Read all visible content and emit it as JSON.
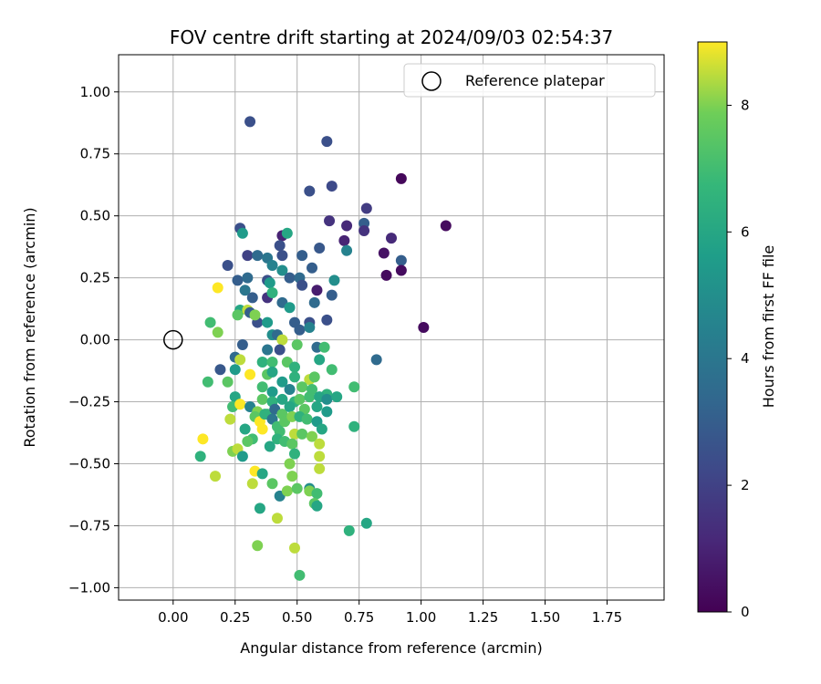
{
  "chart_data": {
    "type": "scatter",
    "title": "FOV centre drift starting at 2024/09/03 02:54:37",
    "xlabel": "Angular distance from reference (arcmin)",
    "ylabel": "Rotation from reference (arcmin)",
    "colorbar_label": "Hours from first FF file",
    "colormap": "viridis",
    "xlim": [
      -0.22,
      1.98
    ],
    "ylim": [
      -1.05,
      1.15
    ],
    "clim": [
      0,
      9
    ],
    "xticks": [
      "0.00",
      "0.25",
      "0.50",
      "0.75",
      "1.00",
      "1.25",
      "1.50",
      "1.75"
    ],
    "yticks": [
      "1.00",
      "0.75",
      "0.50",
      "0.25",
      "0.00",
      "−0.25",
      "−0.50",
      "−0.75",
      "−1.00"
    ],
    "colorbar_ticks": [
      "0",
      "2",
      "4",
      "6",
      "8"
    ],
    "grid": true,
    "legend": {
      "placement": "top-right",
      "entries": [
        "Reference platepar"
      ]
    },
    "reference_point": {
      "x": 0.0,
      "y": 0.0
    },
    "points": [
      {
        "x": 0.31,
        "y": 0.88,
        "h": 2.5
      },
      {
        "x": 0.62,
        "y": 0.8,
        "h": 2.5
      },
      {
        "x": 0.92,
        "y": 0.65,
        "h": 0.2
      },
      {
        "x": 0.64,
        "y": 0.62,
        "h": 2.3
      },
      {
        "x": 0.55,
        "y": 0.6,
        "h": 2.5
      },
      {
        "x": 0.78,
        "y": 0.53,
        "h": 1.8
      },
      {
        "x": 1.1,
        "y": 0.46,
        "h": 0.3
      },
      {
        "x": 0.63,
        "y": 0.48,
        "h": 1.5
      },
      {
        "x": 0.7,
        "y": 0.46,
        "h": 1.2
      },
      {
        "x": 0.77,
        "y": 0.47,
        "h": 3.0
      },
      {
        "x": 0.77,
        "y": 0.44,
        "h": 1.5
      },
      {
        "x": 0.88,
        "y": 0.41,
        "h": 1.2
      },
      {
        "x": 0.69,
        "y": 0.4,
        "h": 1.0
      },
      {
        "x": 0.27,
        "y": 0.45,
        "h": 2.5
      },
      {
        "x": 0.28,
        "y": 0.43,
        "h": 5.5
      },
      {
        "x": 0.44,
        "y": 0.42,
        "h": 1.0
      },
      {
        "x": 0.46,
        "y": 0.43,
        "h": 6.0
      },
      {
        "x": 0.43,
        "y": 0.38,
        "h": 2.5
      },
      {
        "x": 0.59,
        "y": 0.37,
        "h": 2.8
      },
      {
        "x": 0.7,
        "y": 0.36,
        "h": 4.5
      },
      {
        "x": 0.85,
        "y": 0.35,
        "h": 0.5
      },
      {
        "x": 0.92,
        "y": 0.32,
        "h": 3.0
      },
      {
        "x": 0.3,
        "y": 0.34,
        "h": 2.0
      },
      {
        "x": 0.34,
        "y": 0.34,
        "h": 3.5
      },
      {
        "x": 0.38,
        "y": 0.33,
        "h": 4.0
      },
      {
        "x": 0.44,
        "y": 0.34,
        "h": 2.5
      },
      {
        "x": 0.52,
        "y": 0.34,
        "h": 3.0
      },
      {
        "x": 0.22,
        "y": 0.3,
        "h": 2.5
      },
      {
        "x": 0.4,
        "y": 0.3,
        "h": 4.5
      },
      {
        "x": 0.56,
        "y": 0.29,
        "h": 3.0
      },
      {
        "x": 0.44,
        "y": 0.28,
        "h": 5.0
      },
      {
        "x": 0.92,
        "y": 0.28,
        "h": 0.3
      },
      {
        "x": 0.86,
        "y": 0.26,
        "h": 0.3
      },
      {
        "x": 0.26,
        "y": 0.24,
        "h": 3.0
      },
      {
        "x": 0.3,
        "y": 0.25,
        "h": 3.5
      },
      {
        "x": 0.38,
        "y": 0.24,
        "h": 2.5
      },
      {
        "x": 0.47,
        "y": 0.25,
        "h": 3.0
      },
      {
        "x": 0.51,
        "y": 0.25,
        "h": 3.5
      },
      {
        "x": 0.52,
        "y": 0.22,
        "h": 2.5
      },
      {
        "x": 0.65,
        "y": 0.24,
        "h": 5.0
      },
      {
        "x": 0.29,
        "y": 0.2,
        "h": 4.0
      },
      {
        "x": 0.39,
        "y": 0.23,
        "h": 5.5
      },
      {
        "x": 0.58,
        "y": 0.2,
        "h": 0.8
      },
      {
        "x": 0.18,
        "y": 0.21,
        "h": 9.0
      },
      {
        "x": 0.32,
        "y": 0.17,
        "h": 3.0
      },
      {
        "x": 0.38,
        "y": 0.17,
        "h": 1.5
      },
      {
        "x": 0.4,
        "y": 0.19,
        "h": 6.5
      },
      {
        "x": 0.44,
        "y": 0.15,
        "h": 3.5
      },
      {
        "x": 0.47,
        "y": 0.13,
        "h": 5.5
      },
      {
        "x": 0.57,
        "y": 0.15,
        "h": 3.5
      },
      {
        "x": 0.64,
        "y": 0.18,
        "h": 3.0
      },
      {
        "x": 0.27,
        "y": 0.12,
        "h": 6.0
      },
      {
        "x": 0.3,
        "y": 0.12,
        "h": 8.5
      },
      {
        "x": 0.31,
        "y": 0.11,
        "h": 3.0
      },
      {
        "x": 0.34,
        "y": 0.07,
        "h": 2.5
      },
      {
        "x": 0.26,
        "y": 0.1,
        "h": 7.5
      },
      {
        "x": 0.33,
        "y": 0.1,
        "h": 8.0
      },
      {
        "x": 0.38,
        "y": 0.07,
        "h": 5.5
      },
      {
        "x": 0.49,
        "y": 0.07,
        "h": 3.0
      },
      {
        "x": 0.55,
        "y": 0.07,
        "h": 2.5
      },
      {
        "x": 0.62,
        "y": 0.08,
        "h": 2.5
      },
      {
        "x": 0.15,
        "y": 0.07,
        "h": 7.0
      },
      {
        "x": 0.18,
        "y": 0.03,
        "h": 8.0
      },
      {
        "x": 0.4,
        "y": 0.02,
        "h": 5.0
      },
      {
        "x": 0.42,
        "y": 0.02,
        "h": 3.5
      },
      {
        "x": 0.44,
        "y": 0.0,
        "h": 8.5
      },
      {
        "x": 0.51,
        "y": 0.04,
        "h": 3.0
      },
      {
        "x": 0.55,
        "y": 0.05,
        "h": 4.5
      },
      {
        "x": 0.28,
        "y": -0.02,
        "h": 3.0
      },
      {
        "x": 0.38,
        "y": -0.04,
        "h": 4.0
      },
      {
        "x": 0.43,
        "y": -0.04,
        "h": 2.5
      },
      {
        "x": 0.5,
        "y": -0.02,
        "h": 7.5
      },
      {
        "x": 0.58,
        "y": -0.03,
        "h": 3.5
      },
      {
        "x": 0.61,
        "y": -0.03,
        "h": 7.0
      },
      {
        "x": 0.82,
        "y": -0.08,
        "h": 3.5
      },
      {
        "x": 0.25,
        "y": -0.07,
        "h": 3.5
      },
      {
        "x": 0.27,
        "y": -0.08,
        "h": 8.5
      },
      {
        "x": 0.36,
        "y": -0.09,
        "h": 6.5
      },
      {
        "x": 0.4,
        "y": -0.09,
        "h": 7.0
      },
      {
        "x": 0.46,
        "y": -0.09,
        "h": 7.5
      },
      {
        "x": 0.49,
        "y": -0.11,
        "h": 6.5
      },
      {
        "x": 0.59,
        "y": -0.08,
        "h": 6.0
      },
      {
        "x": 0.64,
        "y": -0.12,
        "h": 7.0
      },
      {
        "x": 0.19,
        "y": -0.12,
        "h": 2.8
      },
      {
        "x": 0.25,
        "y": -0.12,
        "h": 5.5
      },
      {
        "x": 0.31,
        "y": -0.14,
        "h": 9.0
      },
      {
        "x": 0.38,
        "y": -0.14,
        "h": 7.5
      },
      {
        "x": 0.4,
        "y": -0.13,
        "h": 6.0
      },
      {
        "x": 0.44,
        "y": -0.17,
        "h": 5.5
      },
      {
        "x": 0.49,
        "y": -0.15,
        "h": 6.5
      },
      {
        "x": 0.55,
        "y": -0.16,
        "h": 8.5
      },
      {
        "x": 0.57,
        "y": -0.15,
        "h": 7.5
      },
      {
        "x": 0.14,
        "y": -0.17,
        "h": 7.0
      },
      {
        "x": 0.22,
        "y": -0.17,
        "h": 7.5
      },
      {
        "x": 0.36,
        "y": -0.19,
        "h": 7.0
      },
      {
        "x": 0.4,
        "y": -0.21,
        "h": 5.5
      },
      {
        "x": 0.47,
        "y": -0.2,
        "h": 4.5
      },
      {
        "x": 0.52,
        "y": -0.19,
        "h": 7.5
      },
      {
        "x": 0.56,
        "y": -0.2,
        "h": 7.0
      },
      {
        "x": 0.62,
        "y": -0.22,
        "h": 6.5
      },
      {
        "x": 0.73,
        "y": -0.19,
        "h": 7.0
      },
      {
        "x": 0.25,
        "y": -0.23,
        "h": 6.0
      },
      {
        "x": 0.36,
        "y": -0.24,
        "h": 7.5
      },
      {
        "x": 0.4,
        "y": -0.25,
        "h": 6.5
      },
      {
        "x": 0.44,
        "y": -0.24,
        "h": 6.0
      },
      {
        "x": 0.49,
        "y": -0.25,
        "h": 6.5
      },
      {
        "x": 0.51,
        "y": -0.24,
        "h": 7.5
      },
      {
        "x": 0.55,
        "y": -0.23,
        "h": 7.0
      },
      {
        "x": 0.59,
        "y": -0.23,
        "h": 6.0
      },
      {
        "x": 0.62,
        "y": -0.24,
        "h": 5.0
      },
      {
        "x": 0.66,
        "y": -0.23,
        "h": 6.0
      },
      {
        "x": 0.24,
        "y": -0.27,
        "h": 7.0
      },
      {
        "x": 0.27,
        "y": -0.26,
        "h": 9.0
      },
      {
        "x": 0.31,
        "y": -0.27,
        "h": 4.5
      },
      {
        "x": 0.34,
        "y": -0.29,
        "h": 8.0
      },
      {
        "x": 0.38,
        "y": -0.3,
        "h": 7.0
      },
      {
        "x": 0.41,
        "y": -0.28,
        "h": 3.5
      },
      {
        "x": 0.44,
        "y": -0.3,
        "h": 7.5
      },
      {
        "x": 0.47,
        "y": -0.27,
        "h": 6.0
      },
      {
        "x": 0.53,
        "y": -0.28,
        "h": 7.5
      },
      {
        "x": 0.58,
        "y": -0.27,
        "h": 6.0
      },
      {
        "x": 0.62,
        "y": -0.29,
        "h": 5.5
      },
      {
        "x": 0.23,
        "y": -0.32,
        "h": 8.5
      },
      {
        "x": 0.33,
        "y": -0.31,
        "h": 7.5
      },
      {
        "x": 0.35,
        "y": -0.33,
        "h": 9.0
      },
      {
        "x": 0.37,
        "y": -0.3,
        "h": 6.5
      },
      {
        "x": 0.4,
        "y": -0.32,
        "h": 4.0
      },
      {
        "x": 0.42,
        "y": -0.35,
        "h": 7.0
      },
      {
        "x": 0.45,
        "y": -0.33,
        "h": 7.5
      },
      {
        "x": 0.48,
        "y": -0.31,
        "h": 8.0
      },
      {
        "x": 0.51,
        "y": -0.31,
        "h": 6.5
      },
      {
        "x": 0.54,
        "y": -0.32,
        "h": 7.0
      },
      {
        "x": 0.58,
        "y": -0.33,
        "h": 5.5
      },
      {
        "x": 0.29,
        "y": -0.36,
        "h": 6.0
      },
      {
        "x": 0.36,
        "y": -0.36,
        "h": 9.0
      },
      {
        "x": 0.43,
        "y": -0.37,
        "h": 7.0
      },
      {
        "x": 0.49,
        "y": -0.38,
        "h": 8.5
      },
      {
        "x": 0.52,
        "y": -0.38,
        "h": 7.5
      },
      {
        "x": 0.56,
        "y": -0.39,
        "h": 8.0
      },
      {
        "x": 0.6,
        "y": -0.36,
        "h": 6.0
      },
      {
        "x": 0.73,
        "y": -0.35,
        "h": 6.5
      },
      {
        "x": 0.32,
        "y": -0.4,
        "h": 7.0
      },
      {
        "x": 0.3,
        "y": -0.41,
        "h": 7.5
      },
      {
        "x": 0.39,
        "y": -0.43,
        "h": 6.0
      },
      {
        "x": 0.42,
        "y": -0.4,
        "h": 6.5
      },
      {
        "x": 0.45,
        "y": -0.41,
        "h": 7.0
      },
      {
        "x": 0.48,
        "y": -0.42,
        "h": 7.5
      },
      {
        "x": 0.59,
        "y": -0.42,
        "h": 8.5
      },
      {
        "x": 0.12,
        "y": -0.4,
        "h": 9.0
      },
      {
        "x": 0.24,
        "y": -0.45,
        "h": 8.0
      },
      {
        "x": 0.26,
        "y": -0.44,
        "h": 8.5
      },
      {
        "x": 0.28,
        "y": -0.47,
        "h": 5.5
      },
      {
        "x": 0.49,
        "y": -0.46,
        "h": 6.5
      },
      {
        "x": 0.59,
        "y": -0.47,
        "h": 8.5
      },
      {
        "x": 0.11,
        "y": -0.47,
        "h": 6.5
      },
      {
        "x": 0.47,
        "y": -0.5,
        "h": 8.0
      },
      {
        "x": 0.33,
        "y": -0.53,
        "h": 9.0
      },
      {
        "x": 0.36,
        "y": -0.54,
        "h": 6.0
      },
      {
        "x": 0.48,
        "y": -0.55,
        "h": 8.0
      },
      {
        "x": 0.59,
        "y": -0.52,
        "h": 8.5
      },
      {
        "x": 0.17,
        "y": -0.55,
        "h": 8.5
      },
      {
        "x": 0.32,
        "y": -0.58,
        "h": 8.5
      },
      {
        "x": 0.4,
        "y": -0.58,
        "h": 7.5
      },
      {
        "x": 0.43,
        "y": -0.63,
        "h": 4.5
      },
      {
        "x": 0.46,
        "y": -0.61,
        "h": 8.0
      },
      {
        "x": 0.5,
        "y": -0.6,
        "h": 7.5
      },
      {
        "x": 0.55,
        "y": -0.6,
        "h": 5.0
      },
      {
        "x": 0.55,
        "y": -0.61,
        "h": 8.0
      },
      {
        "x": 0.58,
        "y": -0.62,
        "h": 7.0
      },
      {
        "x": 0.35,
        "y": -0.68,
        "h": 6.0
      },
      {
        "x": 0.57,
        "y": -0.66,
        "h": 7.5
      },
      {
        "x": 0.58,
        "y": -0.67,
        "h": 6.0
      },
      {
        "x": 0.42,
        "y": -0.72,
        "h": 8.5
      },
      {
        "x": 0.78,
        "y": -0.74,
        "h": 6.0
      },
      {
        "x": 0.71,
        "y": -0.77,
        "h": 6.5
      },
      {
        "x": 0.34,
        "y": -0.83,
        "h": 8.0
      },
      {
        "x": 0.49,
        "y": -0.84,
        "h": 8.5
      },
      {
        "x": 0.51,
        "y": -0.95,
        "h": 7.0
      },
      {
        "x": 1.01,
        "y": 0.05,
        "h": 0.3
      }
    ]
  }
}
